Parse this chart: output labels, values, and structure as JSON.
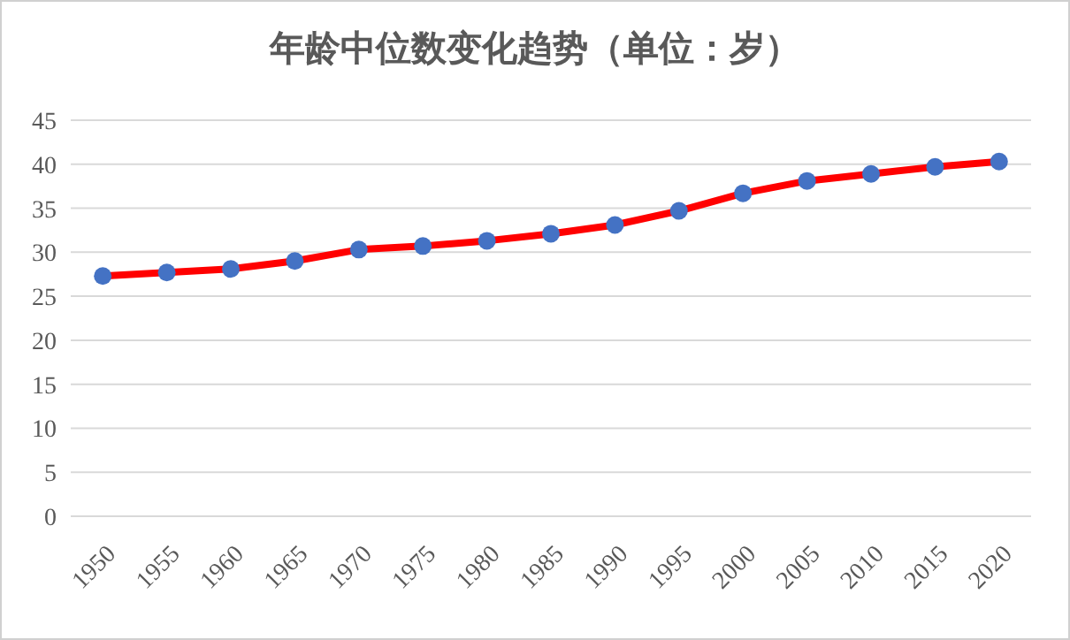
{
  "chart_data": {
    "type": "line",
    "title": "年龄中位数变化趋势（单位：岁）",
    "categories": [
      "1950",
      "1955",
      "1960",
      "1965",
      "1970",
      "1975",
      "1980",
      "1985",
      "1990",
      "1995",
      "2000",
      "2005",
      "2010",
      "2015",
      "2020"
    ],
    "series": [
      {
        "color": "#ff0000",
        "colors": [
          "#4472c4",
          "#4472c4",
          "#4472c4",
          "#4472c4",
          "#4472c4",
          "#4472c4",
          "#4472c4",
          "#4472c4",
          "#4472c4",
          "#4472c4",
          "#4472c4",
          "#4472c4",
          "#4472c4",
          "#4472c4",
          "#4472c4"
        ],
        "values": [
          27.3,
          27.7,
          28.1,
          29.0,
          30.3,
          30.7,
          31.3,
          32.1,
          33.1,
          34.7,
          36.7,
          38.1,
          38.9,
          39.7,
          40.3
        ]
      }
    ],
    "marker": "circle",
    "line_style": "solid",
    "ylim": [
      0,
      45
    ],
    "yticks": [
      0,
      5,
      10,
      15,
      20,
      25,
      30,
      35,
      40,
      45
    ],
    "grid": "y"
  }
}
